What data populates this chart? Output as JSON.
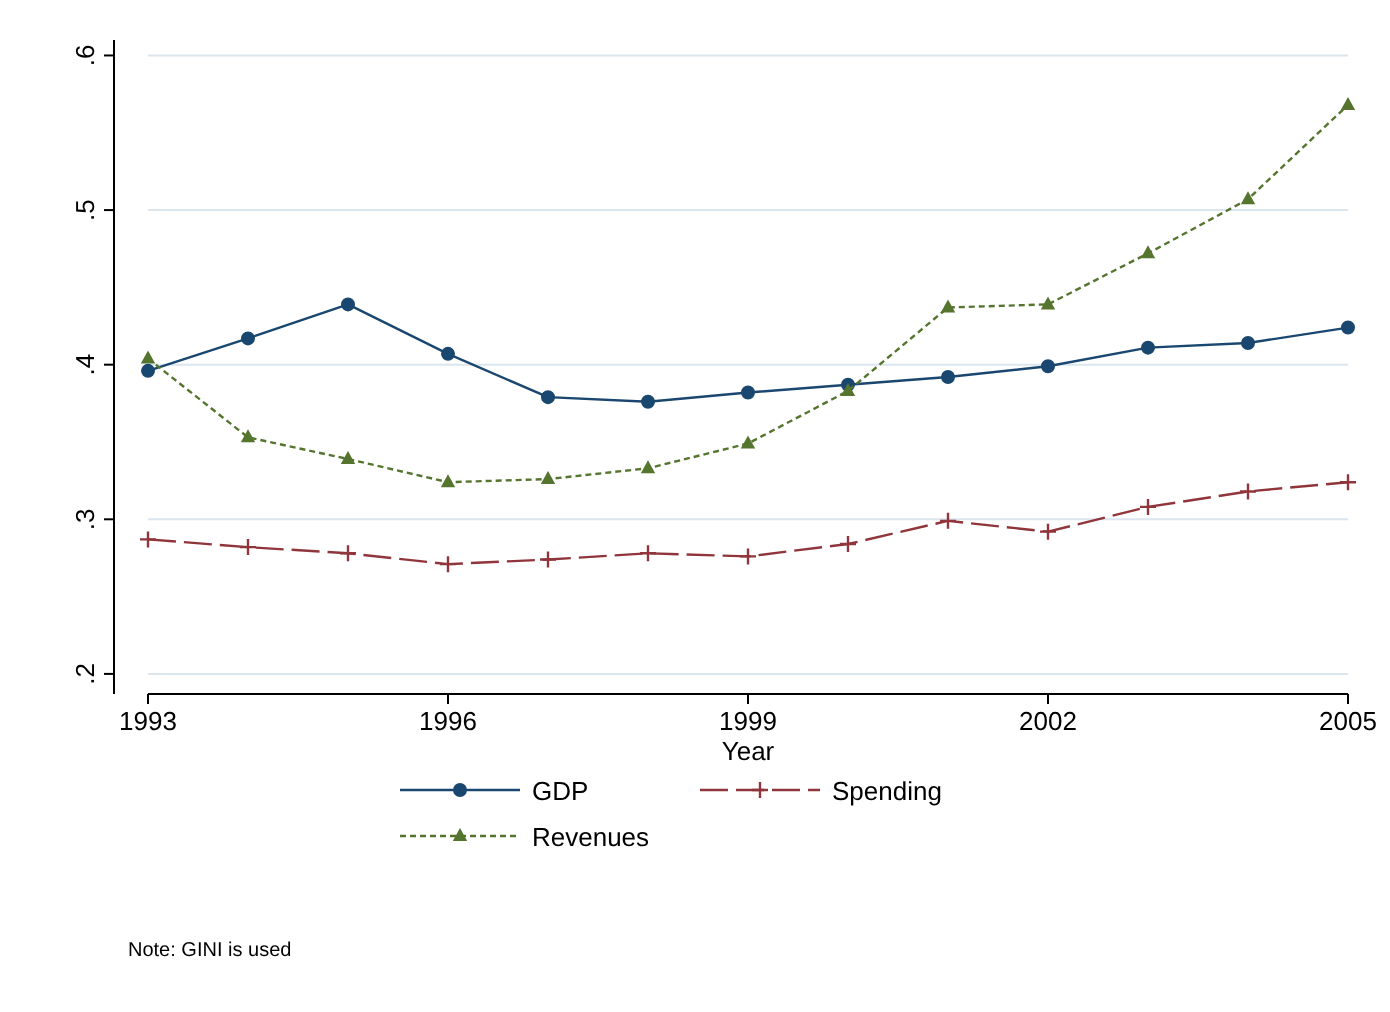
{
  "chart_data": {
    "type": "line",
    "xlabel": "Year",
    "x": [
      1993,
      1994,
      1995,
      1996,
      1997,
      1998,
      1999,
      2000,
      2001,
      2002,
      2003,
      2004,
      2005
    ],
    "series": [
      {
        "name": "GDP",
        "color": "#1a476f",
        "marker": "circle",
        "line_style": "solid",
        "values": [
          0.396,
          0.417,
          0.439,
          0.407,
          0.379,
          0.376,
          0.382,
          0.387,
          0.392,
          0.399,
          0.411,
          0.414,
          0.424
        ]
      },
      {
        "name": "Spending",
        "color": "#90353b",
        "marker": "cross",
        "line_style": "dashed",
        "values": [
          0.287,
          0.282,
          0.278,
          0.271,
          0.274,
          0.278,
          0.276,
          0.284,
          0.299,
          0.292,
          0.308,
          0.318,
          0.324
        ]
      },
      {
        "name": "Revenues",
        "color": "#55752f",
        "marker": "triangle",
        "line_style": "dotted",
        "values": [
          0.404,
          0.353,
          0.339,
          0.324,
          0.326,
          0.333,
          0.349,
          0.383,
          0.437,
          0.439,
          0.472,
          0.507,
          0.568
        ]
      }
    ],
    "xlim": [
      1993,
      2005
    ],
    "xticks": [
      1993,
      1996,
      1999,
      2002,
      2005
    ],
    "ylim": [
      0.187,
      0.61
    ],
    "yticks": [
      {
        "value": 0.2,
        "label": ".2"
      },
      {
        "value": 0.3,
        "label": ".3"
      },
      {
        "value": 0.4,
        "label": ".4"
      },
      {
        "value": 0.5,
        "label": ".5"
      },
      {
        "value": 0.6,
        "label": ".6"
      }
    ],
    "grid": "y",
    "legend": "bottom",
    "annotations": [
      "Note: GINI is used"
    ]
  }
}
